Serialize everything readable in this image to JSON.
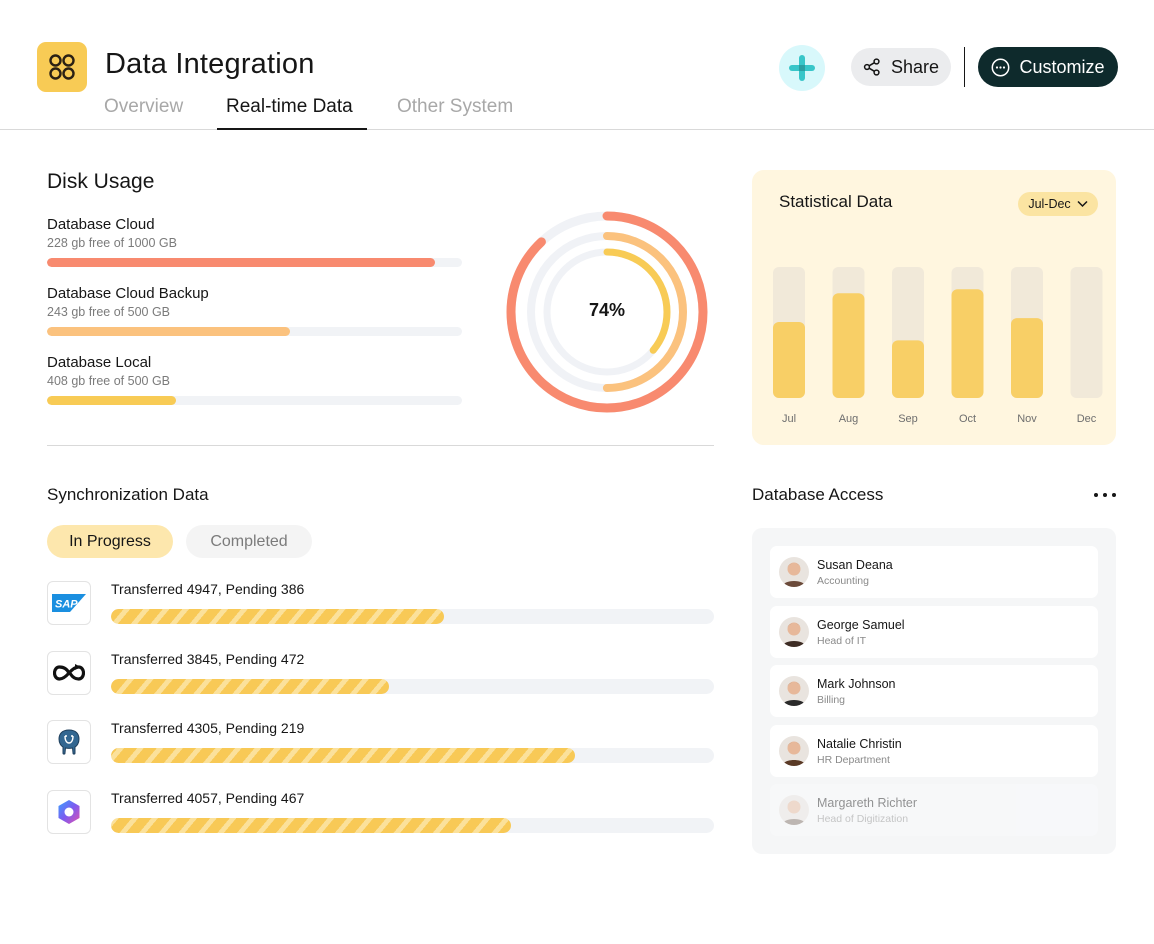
{
  "header": {
    "title": "Data Integration",
    "tabs": [
      {
        "label": "Overview",
        "active": false
      },
      {
        "label": "Real-time Data",
        "active": true
      },
      {
        "label": "Other System",
        "active": false
      }
    ],
    "share_label": "Share",
    "customize_label": "Customize",
    "icons": {
      "app": "grid-apps-icon",
      "plus": "plus-icon",
      "share": "share-icon",
      "customize": "more-circle-icon"
    }
  },
  "disk_usage": {
    "title": "Disk Usage",
    "items": [
      {
        "name": "Database Cloud",
        "detail": "228 gb free of 1000 GB",
        "fill": 0.935,
        "color": "#f88a6f"
      },
      {
        "name": "Database Cloud Backup",
        "detail": "243 gb free of 500 GB",
        "fill": 0.585,
        "color": "#fbc27e"
      },
      {
        "name": "Database Local",
        "detail": "408 gb free of 500 GB",
        "fill": 0.31,
        "color": "#f8cb55"
      }
    ],
    "donut_label": "74%",
    "donut_rings": [
      {
        "fraction": 0.88,
        "color": "#f88a6f"
      },
      {
        "fraction": 0.5,
        "color": "#fbc27e"
      },
      {
        "fraction": 0.36,
        "color": "#f8cb55"
      }
    ]
  },
  "statistical": {
    "title": "Statistical Data",
    "range_label": "Jul-Dec",
    "chart_data": {
      "type": "bar",
      "categories": [
        "Jul",
        "Aug",
        "Sep",
        "Oct",
        "Nov",
        "Dec"
      ],
      "values": [
        58,
        80,
        44,
        83,
        61,
        0
      ],
      "ylim": [
        0,
        100
      ],
      "colors": {
        "bar": "#f8cf66",
        "track": "#f1e9d9"
      }
    }
  },
  "sync": {
    "title": "Synchronization Data",
    "tabs": [
      {
        "label": "In Progress",
        "active": true
      },
      {
        "label": "Completed",
        "active": false
      }
    ],
    "items": [
      {
        "label": "Transferred 4947, Pending 386",
        "progress": 0.553,
        "icon": "sap-logo-icon"
      },
      {
        "label": "Transferred 3845, Pending 472",
        "progress": 0.461,
        "icon": "infinity-logo-icon"
      },
      {
        "label": "Transferred 4305, Pending 219",
        "progress": 0.77,
        "icon": "postgresql-elephant-icon"
      },
      {
        "label": "Transferred 4057, Pending 467",
        "progress": 0.663,
        "icon": "copilot-logo-icon"
      }
    ]
  },
  "access": {
    "title": "Database Access",
    "users": [
      {
        "name": "Susan Deana",
        "role": "Accounting",
        "avatar_color": "#6b4a3a"
      },
      {
        "name": "George Samuel",
        "role": "Head of IT",
        "avatar_color": "#3d2c24"
      },
      {
        "name": "Mark Johnson",
        "role": "Billing",
        "avatar_color": "#2a2a2a"
      },
      {
        "name": "Natalie Christin",
        "role": "HR Department",
        "avatar_color": "#5a3a26"
      },
      {
        "name": "Margareth Richter",
        "role": "Head of Digitization",
        "avatar_color": "#7a6a60"
      }
    ]
  }
}
